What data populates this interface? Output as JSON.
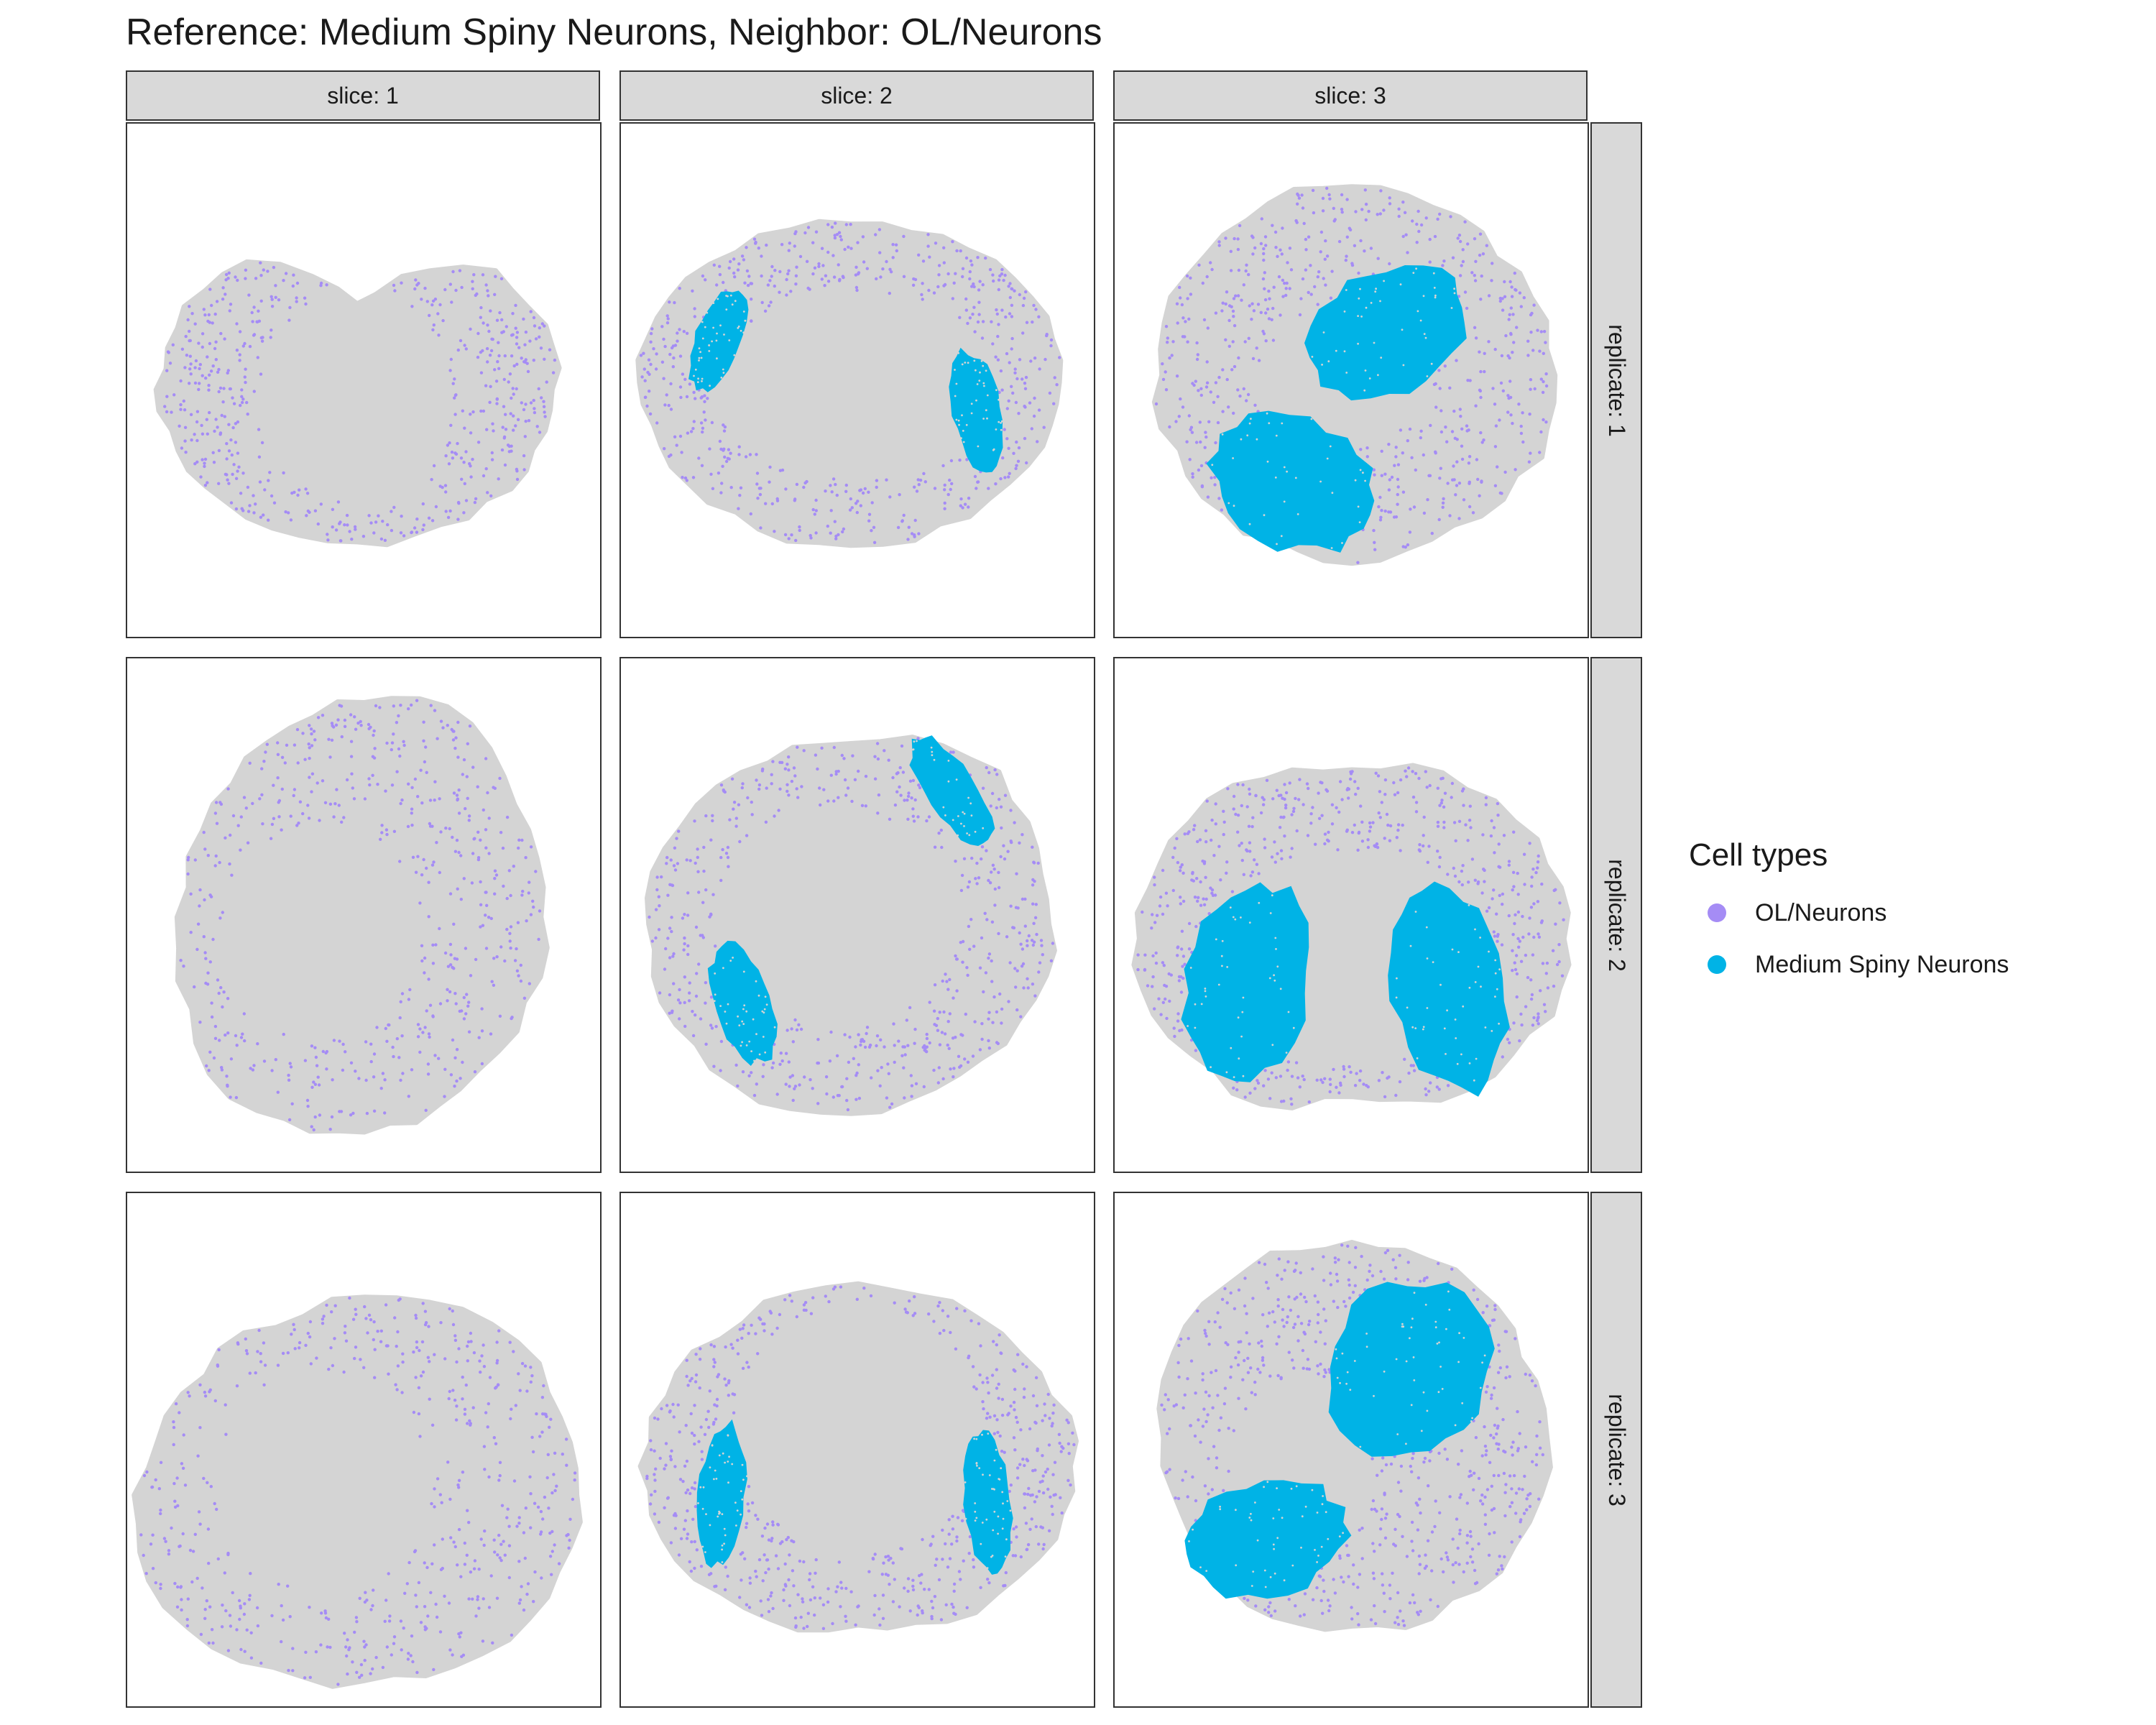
{
  "chart_data": {
    "type": "scatter",
    "title": "Reference: Medium Spiny Neurons, Neighbor: OL/Neurons",
    "facet_columns": [
      "slice: 1",
      "slice: 2",
      "slice: 3"
    ],
    "facet_rows": [
      "replicate: 1",
      "replicate: 2",
      "replicate: 3"
    ],
    "legend": {
      "title": "Cell types",
      "position": "right",
      "entries": [
        {
          "label": "OL/Neurons",
          "color": "#a58cf5"
        },
        {
          "label": "Medium Spiny Neurons",
          "color": "#00b3e6"
        }
      ]
    },
    "background_cells_color": "#d4d4d4",
    "axes": {
      "visible": false,
      "grid": false
    },
    "panels": [
      {
        "slice": 1,
        "replicate": 1,
        "tissue": "coronal section, wide upper lobes",
        "medium_spiny_present": false
      },
      {
        "slice": 2,
        "replicate": 1,
        "tissue": "coronal section, oval",
        "medium_spiny_present": true
      },
      {
        "slice": 3,
        "replicate": 1,
        "tissue": "coronal section, round",
        "medium_spiny_present": true
      },
      {
        "slice": 1,
        "replicate": 2,
        "tissue": "rotated section",
        "medium_spiny_present": false
      },
      {
        "slice": 2,
        "replicate": 2,
        "tissue": "rotated oval section",
        "medium_spiny_present": true
      },
      {
        "slice": 3,
        "replicate": 2,
        "tissue": "coronal section, two striata",
        "medium_spiny_present": true
      },
      {
        "slice": 1,
        "replicate": 3,
        "tissue": "rotated section",
        "medium_spiny_present": false
      },
      {
        "slice": 2,
        "replicate": 3,
        "tissue": "coronal section, wide",
        "medium_spiny_present": true
      },
      {
        "slice": 3,
        "replicate": 3,
        "tissue": "rotated round section",
        "medium_spiny_present": true
      }
    ]
  }
}
